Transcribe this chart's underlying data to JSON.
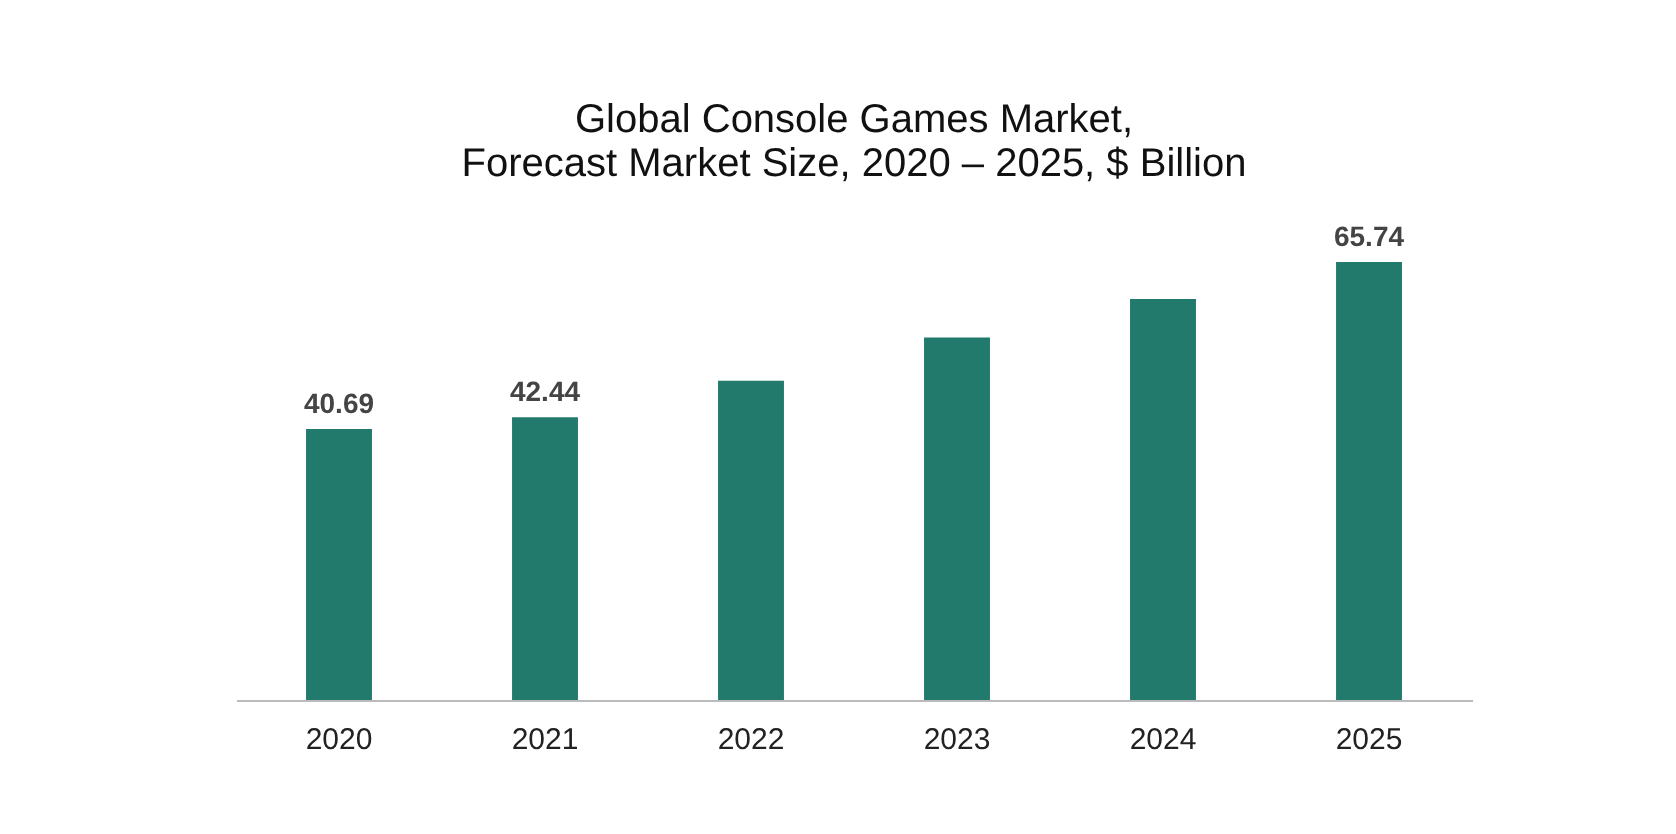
{
  "chart_data": {
    "type": "bar",
    "title": [
      "Global Console Games Market,",
      "Forecast Market Size, 2020 – 2025, $ Billion"
    ],
    "categories": [
      "2020",
      "2021",
      "2022",
      "2023",
      "2024",
      "2025"
    ],
    "values": [
      40.69,
      42.44,
      47.9,
      54.4,
      60.2,
      65.74
    ],
    "value_labels": [
      "40.69",
      "42.44",
      null,
      null,
      null,
      "65.74"
    ],
    "color": "#217a6c",
    "tick_labels": "x",
    "grid": false
  }
}
